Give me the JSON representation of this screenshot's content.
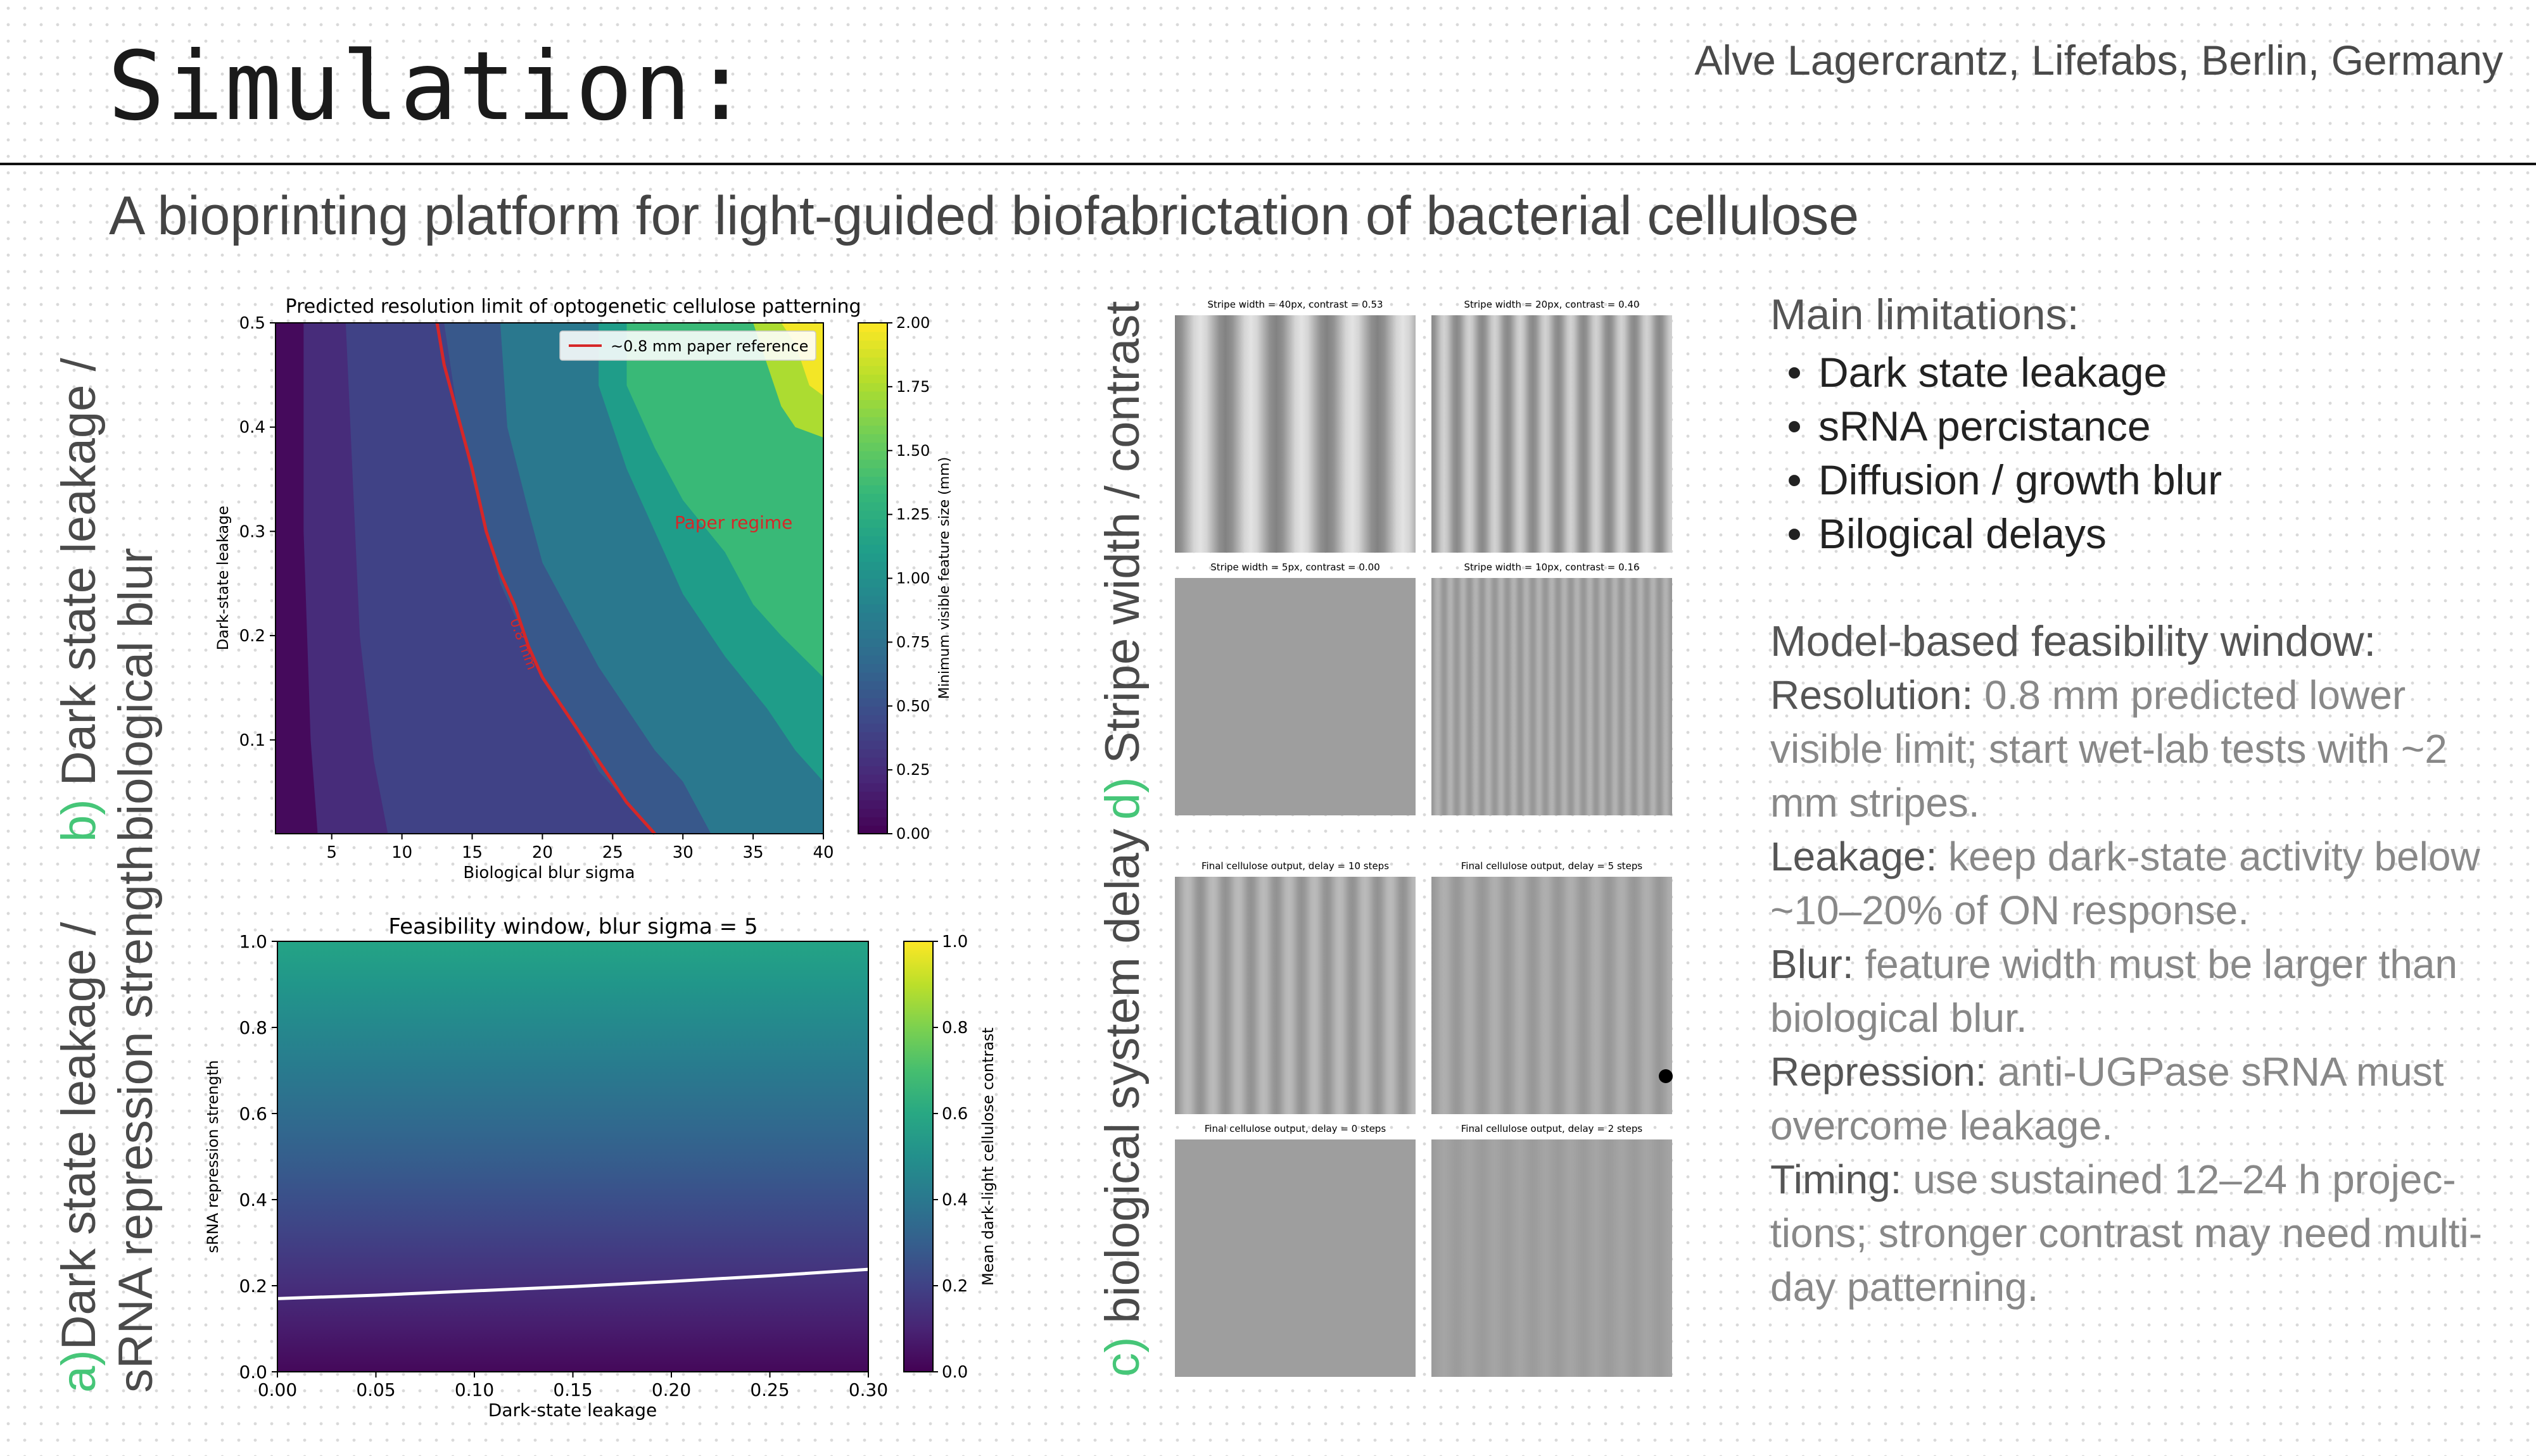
{
  "header": {
    "title": "Simulation:",
    "author": "Alve Lagercrantz, Lifefabs, Berlin, Germany",
    "subtitle": "A bioprinting platform for light-guided biofabrictation of bacterial cellulose"
  },
  "side_labels": {
    "b": {
      "tag": "b)",
      "line1": "Dark state leakage /",
      "line2": "biological blur"
    },
    "a": {
      "tag": "a)",
      "line1": "Dark state leakage /",
      "line2": "sRNA repression strength"
    },
    "d": {
      "tag": "d)",
      "text": "Stripe width / contrast"
    },
    "c": {
      "tag": "c)",
      "text": "biological system delay"
    }
  },
  "colors": {
    "accent_green": "#46c678",
    "viridis": [
      "#440154",
      "#482878",
      "#3e4989",
      "#31688e",
      "#26828e",
      "#1f9e89",
      "#35b779",
      "#6ece58",
      "#b5de2b",
      "#fde725"
    ]
  },
  "chart_data": [
    {
      "id": "resolution",
      "type": "heatmap",
      "title": "Predicted resolution limit of optogenetic cellulose patterning",
      "xlabel": "Biological blur sigma",
      "ylabel": "Dark-state leakage",
      "colorbar_label": "Minimum visible feature size (mm)",
      "x_range": [
        1,
        40
      ],
      "y_range": [
        0.01,
        0.5
      ],
      "x_ticks": [
        5,
        10,
        15,
        20,
        25,
        30,
        35,
        40
      ],
      "y_ticks": [
        0.1,
        0.2,
        0.3,
        0.4,
        0.5
      ],
      "clim": [
        0,
        2
      ],
      "colorbar_ticks": [
        "0.00",
        "0.25",
        "0.50",
        "0.75",
        "1.00",
        "1.25",
        "1.50",
        "1.75",
        "2.00"
      ],
      "legend": {
        "entry": "~0.8 mm paper reference",
        "position": "top-right"
      },
      "annotation": "Paper regime",
      "contour_label": "0.8 mm",
      "contour_color": "#d62728",
      "contour_08mm": [
        [
          12.5,
          0.5
        ],
        [
          13,
          0.46
        ],
        [
          14,
          0.41
        ],
        [
          15,
          0.36
        ],
        [
          16,
          0.3
        ],
        [
          17,
          0.26
        ],
        [
          18,
          0.23
        ],
        [
          19,
          0.19
        ],
        [
          20,
          0.16
        ],
        [
          22,
          0.12
        ],
        [
          24,
          0.08
        ],
        [
          26,
          0.04
        ],
        [
          28,
          0.01
        ]
      ],
      "bands": [
        {
          "value": 0.05,
          "edge": [
            [
              1,
              0.5
            ],
            [
              1,
              0.01
            ]
          ]
        },
        {
          "value": 0.25,
          "edge": [
            [
              3,
              0.5
            ],
            [
              3,
              0.3
            ],
            [
              3.5,
              0.1
            ],
            [
              4,
              0.01
            ]
          ]
        },
        {
          "value": 0.4,
          "edge": [
            [
              6,
              0.5
            ],
            [
              6.5,
              0.35
            ],
            [
              7,
              0.2
            ],
            [
              8,
              0.08
            ],
            [
              9,
              0.01
            ]
          ]
        },
        {
          "value": 0.55,
          "edge": [
            [
              13,
              0.5
            ],
            [
              14,
              0.41
            ],
            [
              15,
              0.35
            ],
            [
              16,
              0.3
            ],
            [
              17,
              0.25
            ],
            [
              18,
              0.22
            ],
            [
              20,
              0.16
            ],
            [
              22,
              0.12
            ],
            [
              24,
              0.07
            ],
            [
              26,
              0.04
            ],
            [
              28,
              0.01
            ]
          ]
        },
        {
          "value": 0.8,
          "edge": [
            [
              17,
              0.5
            ],
            [
              17.5,
              0.4
            ],
            [
              19,
              0.32
            ],
            [
              20,
              0.27
            ],
            [
              22,
              0.22
            ],
            [
              24,
              0.17
            ],
            [
              26,
              0.13
            ],
            [
              28,
              0.09
            ],
            [
              30,
              0.06
            ],
            [
              32,
              0.01
            ]
          ]
        },
        {
          "value": 1.1,
          "edge": [
            [
              24,
              0.5
            ],
            [
              24,
              0.44
            ],
            [
              26,
              0.36
            ],
            [
              28,
              0.3
            ],
            [
              30,
              0.24
            ],
            [
              33,
              0.18
            ],
            [
              36,
              0.13
            ],
            [
              38,
              0.09
            ],
            [
              40,
              0.06
            ]
          ]
        },
        {
          "value": 1.35,
          "edge": [
            [
              26,
              0.5
            ],
            [
              26,
              0.44
            ],
            [
              28,
              0.38
            ],
            [
              30,
              0.33
            ],
            [
              33,
              0.28
            ],
            [
              35,
              0.23
            ],
            [
              37,
              0.2
            ],
            [
              40,
              0.16
            ]
          ]
        },
        {
          "value": 1.75,
          "edge": [
            [
              35,
              0.5
            ],
            [
              36,
              0.46
            ],
            [
              37,
              0.42
            ],
            [
              38,
              0.4
            ],
            [
              40,
              0.39
            ]
          ]
        },
        {
          "value": 1.97,
          "edge": [
            [
              37,
              0.5
            ],
            [
              38,
              0.48
            ],
            [
              39,
              0.44
            ],
            [
              40,
              0.43
            ]
          ]
        }
      ]
    },
    {
      "id": "feasibility",
      "type": "heatmap",
      "title": "Feasibility window, blur sigma = 5",
      "xlabel": "Dark-state leakage",
      "ylabel": "sRNA repression strength",
      "colorbar_label": "Mean dark-light cellulose contrast",
      "x_range": [
        0,
        0.3
      ],
      "y_range": [
        0,
        1
      ],
      "x_ticks": [
        "0.00",
        "0.05",
        "0.10",
        "0.15",
        "0.20",
        "0.25",
        "0.30"
      ],
      "y_ticks": [
        "0.0",
        "0.2",
        "0.4",
        "0.6",
        "0.8",
        "1.0"
      ],
      "clim": [
        0,
        1
      ],
      "colorbar_ticks": [
        "0.0",
        "0.2",
        "0.4",
        "0.6",
        "0.8",
        "1.0"
      ],
      "value_top": 0.58,
      "value_bottom": 0.02,
      "contour_color": "#ffffff",
      "threshold_curve": {
        "x": [
          0,
          0.05,
          0.1,
          0.15,
          0.2,
          0.25,
          0.3
        ],
        "y": [
          0.17,
          0.178,
          0.188,
          0.198,
          0.21,
          0.223,
          0.238
        ]
      }
    },
    {
      "id": "stripe-panels",
      "type": "heatmap",
      "panels": [
        {
          "title": "Stripe width = 40px, contrast = 0.53",
          "period": 80,
          "contrast": 0.53
        },
        {
          "title": "Stripe width = 20px, contrast = 0.40",
          "period": 40,
          "contrast": 0.4
        },
        {
          "title": "Stripe width = 5px, contrast = 0.00",
          "period": 10,
          "contrast": 0.0
        },
        {
          "title": "Stripe width = 10px, contrast = 0.16",
          "period": 20,
          "contrast": 0.16
        }
      ]
    },
    {
      "id": "delay-panels",
      "type": "heatmap",
      "panels": [
        {
          "title": "Final cellulose output, delay = 10 steps",
          "period": 40,
          "contrast": 0.22
        },
        {
          "title": "Final cellulose output, delay = 5 steps",
          "period": 40,
          "contrast": 0.13
        },
        {
          "title": "Final cellulose output, delay = 0 steps",
          "period": 40,
          "contrast": 0.0
        },
        {
          "title": "Final cellulose output, delay = 2 steps",
          "period": 40,
          "contrast": 0.05
        }
      ]
    }
  ],
  "notes": {
    "limitations_heading": "Main limitations:",
    "limitations": [
      "Dark state leakage",
      "sRNA percistance",
      "Diffusion / growth blur",
      "Bilogical delays"
    ],
    "window_heading": "Model-based feasibility window:",
    "window_items": [
      {
        "key": "Resolution:",
        "text": " 0.8 mm predicted lower visible limit; start wet-lab tests with ~2 mm stripes."
      },
      {
        "key": "Leakage:",
        "text": " keep dark-state activity below ~10–20% of ON response."
      },
      {
        "key": "Blur:",
        "text": " feature width must be larger than biological blur."
      },
      {
        "key": "Repression:",
        "text": " anti-UGPase sRNA must overcome leakage."
      },
      {
        "key": "Timing:",
        "text": " use sustained 12–24 h projec-tions; stronger contrast may need multi-day patterning."
      }
    ]
  }
}
